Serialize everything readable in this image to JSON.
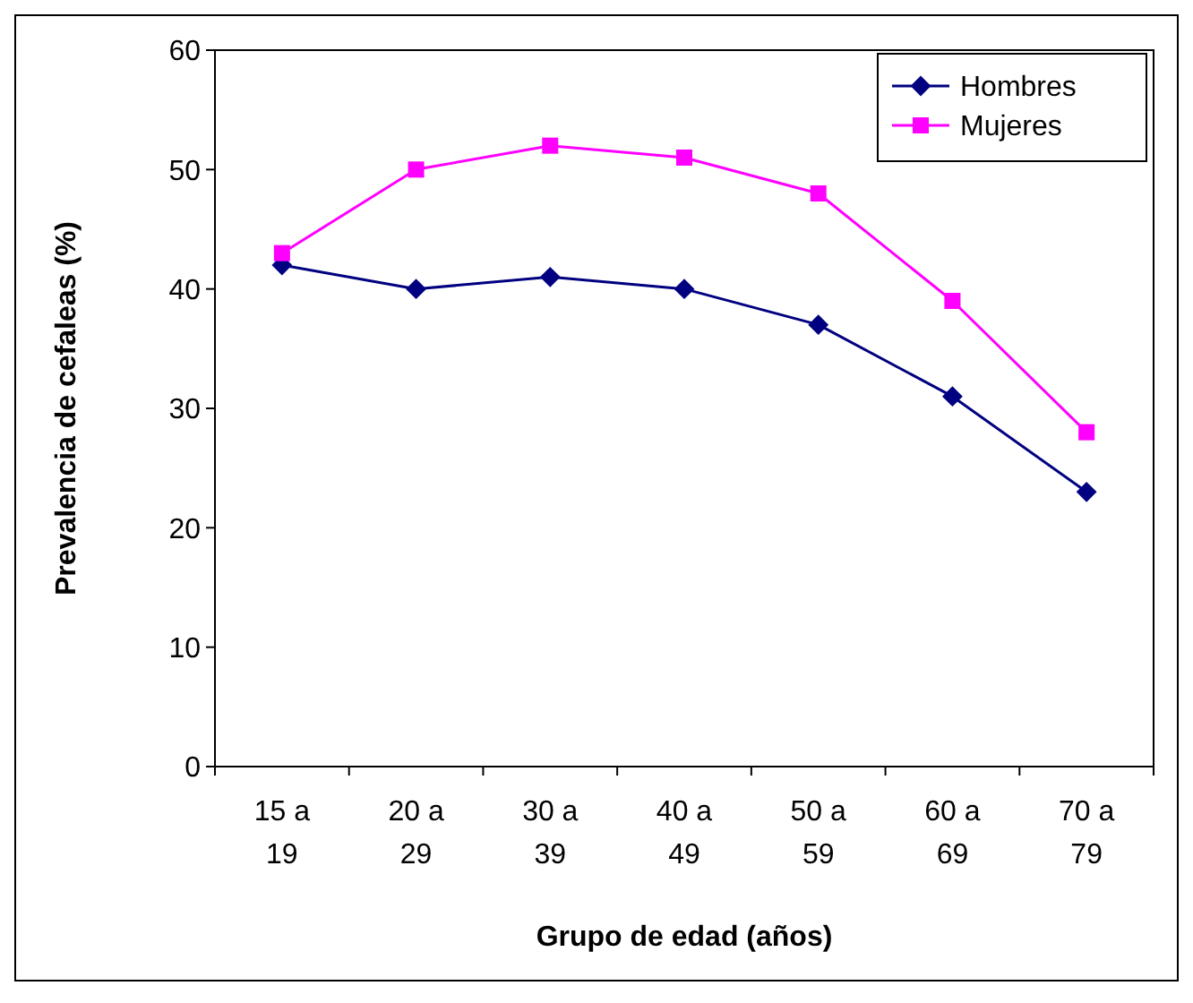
{
  "chart_data": {
    "type": "line",
    "xlabel": "Grupo de edad (años)",
    "ylabel": "Prevalencia de cefaleas (%)",
    "categories": [
      "15 a 19",
      "20 a 29",
      "30 a 39",
      "40 a 49",
      "50 a 59",
      "60 a 69",
      "70 a 79"
    ],
    "series": [
      {
        "name": "Hombres",
        "color": "#000080",
        "marker": "diamond",
        "values": [
          42,
          40,
          41,
          40,
          37,
          31,
          23
        ]
      },
      {
        "name": "Mujeres",
        "color": "#ff00ff",
        "marker": "square",
        "values": [
          43,
          50,
          52,
          51,
          48,
          39,
          28
        ]
      }
    ],
    "ylim": [
      0,
      60
    ],
    "yticks": [
      0,
      10,
      20,
      30,
      40,
      50,
      60
    ],
    "grid": false,
    "legend": "top right",
    "line_style": "solid"
  }
}
